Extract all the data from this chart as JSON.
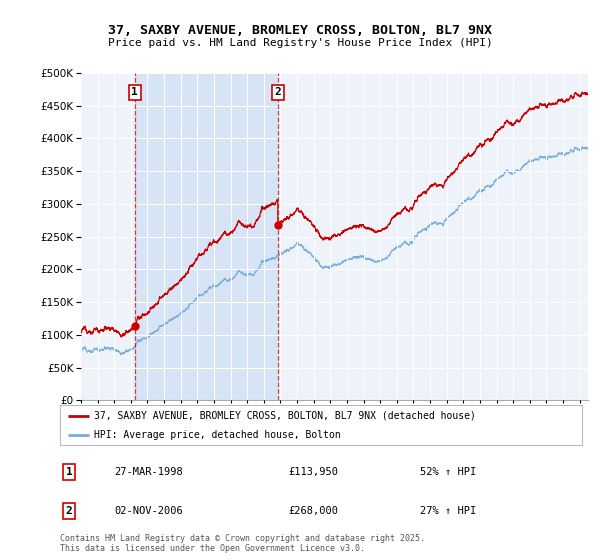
{
  "title_line1": "37, SAXBY AVENUE, BROMLEY CROSS, BOLTON, BL7 9NX",
  "title_line2": "Price paid vs. HM Land Registry's House Price Index (HPI)",
  "legend_label1": "37, SAXBY AVENUE, BROMLEY CROSS, BOLTON, BL7 9NX (detached house)",
  "legend_label2": "HPI: Average price, detached house, Bolton",
  "purchase1_date_str": "27-MAR-1998",
  "purchase1_date": 1998.23,
  "purchase1_price": 113950,
  "purchase1_label": "52% ↑ HPI",
  "purchase2_date_str": "02-NOV-2006",
  "purchase2_date": 2006.84,
  "purchase2_price": 268000,
  "purchase2_label": "27% ↑ HPI",
  "red_color": "#cc0000",
  "blue_color": "#7aaddc",
  "shade_color": "#d6e4f5",
  "bg_color": "#eef3fa",
  "plot_bg": "#eef3fa",
  "footnote": "Contains HM Land Registry data © Crown copyright and database right 2025.\nThis data is licensed under the Open Government Licence v3.0.",
  "ylim": [
    0,
    500000
  ],
  "xlim_start": 1995.0,
  "xlim_end": 2025.5
}
